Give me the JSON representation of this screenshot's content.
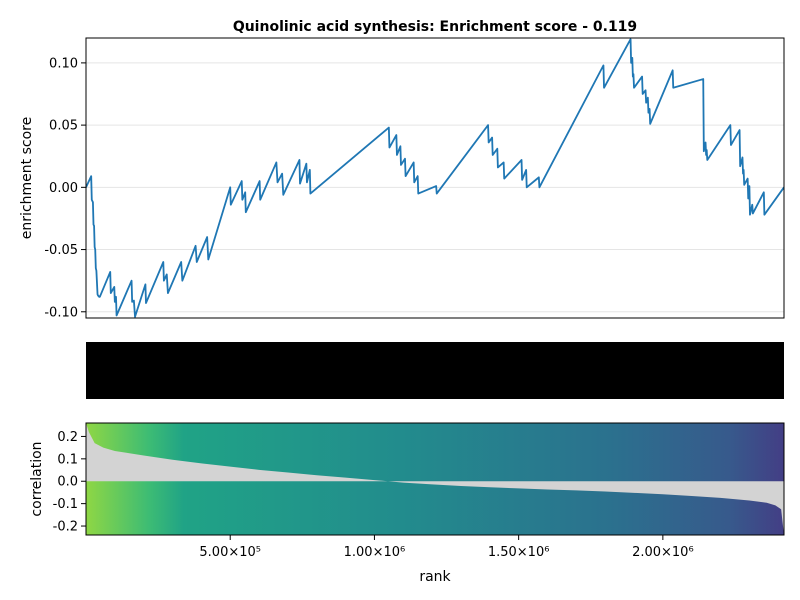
{
  "chart_data": [
    {
      "type": "line",
      "panel": "enrichment",
      "title": "Quinolinic acid synthesis: Enrichment score - 0.119",
      "ylabel": "enrichment score",
      "xlim": [
        0,
        2420000
      ],
      "ylim": [
        -0.105,
        0.12
      ],
      "yticks": [
        -0.1,
        -0.05,
        0.0,
        0.05,
        0.1
      ],
      "ytick_labels": [
        "-0.10",
        "-0.05",
        "0.00",
        "0.05",
        "0.10"
      ],
      "grid": true,
      "color": "#1f77b4",
      "x": [
        0,
        18000,
        20000,
        24000,
        26000,
        28000,
        30000,
        32000,
        34000,
        36000,
        40000,
        42000,
        46000,
        48000,
        84000,
        86000,
        98000,
        100000,
        104000,
        106000,
        158000,
        160000,
        166000,
        170000,
        206000,
        208000,
        268000,
        270000,
        280000,
        284000,
        330000,
        334000,
        380000,
        384000,
        420000,
        424000,
        500000,
        502000,
        540000,
        542000,
        552000,
        554000,
        602000,
        604000,
        660000,
        664000,
        680000,
        684000,
        740000,
        742000,
        764000,
        766000,
        776000,
        778000,
        1050000,
        1052000,
        1076000,
        1078000,
        1090000,
        1092000,
        1106000,
        1108000,
        1136000,
        1138000,
        1150000,
        1152000,
        1214000,
        1216000,
        1394000,
        1396000,
        1408000,
        1410000,
        1426000,
        1428000,
        1448000,
        1450000,
        1510000,
        1512000,
        1526000,
        1528000,
        1570000,
        1572000,
        1794000,
        1796000,
        1888000,
        1890000,
        1894000,
        1896000,
        1898000,
        1900000,
        1928000,
        1930000,
        1940000,
        1942000,
        1948000,
        1950000,
        1954000,
        1956000,
        2034000,
        2036000,
        2140000,
        2142000,
        2148000,
        2150000,
        2152000,
        2154000,
        2234000,
        2236000,
        2266000,
        2268000,
        2276000,
        2278000,
        2280000,
        2282000,
        2294000,
        2296000,
        2300000,
        2302000,
        2310000,
        2312000,
        2350000,
        2352000,
        2420000
      ],
      "y": [
        0.0,
        0.009,
        -0.01,
        -0.012,
        -0.03,
        -0.031,
        -0.048,
        -0.05,
        -0.065,
        -0.067,
        -0.086,
        -0.087,
        -0.088,
        -0.088,
        -0.068,
        -0.085,
        -0.08,
        -0.092,
        -0.088,
        -0.103,
        -0.075,
        -0.092,
        -0.091,
        -0.104,
        -0.078,
        -0.093,
        -0.06,
        -0.075,
        -0.07,
        -0.085,
        -0.06,
        -0.075,
        -0.047,
        -0.06,
        -0.04,
        -0.058,
        0.0,
        -0.014,
        0.005,
        -0.01,
        -0.004,
        -0.02,
        0.005,
        -0.01,
        0.02,
        0.004,
        0.011,
        -0.006,
        0.022,
        0.003,
        0.019,
        0.004,
        0.014,
        -0.005,
        0.048,
        0.032,
        0.042,
        0.026,
        0.033,
        0.018,
        0.023,
        0.009,
        0.02,
        0.004,
        0.009,
        -0.005,
        0.001,
        -0.005,
        0.05,
        0.036,
        0.04,
        0.026,
        0.031,
        0.016,
        0.02,
        0.007,
        0.022,
        0.006,
        0.014,
        0.0,
        0.008,
        0.0,
        0.098,
        0.08,
        0.119,
        0.1,
        0.104,
        0.089,
        0.091,
        0.08,
        0.089,
        0.075,
        0.078,
        0.068,
        0.072,
        0.06,
        0.063,
        0.051,
        0.094,
        0.08,
        0.087,
        0.029,
        0.036,
        0.026,
        0.03,
        0.022,
        0.05,
        0.034,
        0.046,
        0.017,
        0.024,
        0.011,
        0.014,
        0.002,
        0.007,
        -0.009,
        0.001,
        -0.022,
        -0.014,
        -0.021,
        -0.004,
        -0.022,
        0.0
      ]
    },
    {
      "type": "heatmap",
      "panel": "hits",
      "color": "#000000"
    },
    {
      "type": "area",
      "panel": "correlation",
      "xlabel": "rank",
      "ylabel": "correlation",
      "xlim": [
        0,
        2420000
      ],
      "ylim": [
        -0.24,
        0.26
      ],
      "xticks": [
        500000,
        1000000,
        1500000,
        2000000
      ],
      "xtick_labels": [
        "5.00×10⁵",
        "1.00×10⁶",
        "1.50×10⁶",
        "2.00×10⁶"
      ],
      "yticks": [
        0.2,
        0.1,
        0.0,
        -0.1,
        -0.2
      ],
      "ytick_labels": [
        "0.2",
        "0.1",
        "0.0",
        "-0.1",
        "-0.2"
      ],
      "fill_color": "#d3d3d3",
      "x": [
        0,
        10000,
        30000,
        60000,
        100000,
        200000,
        300000,
        400000,
        500000,
        600000,
        700000,
        800000,
        900000,
        1000000,
        1100000,
        1200000,
        1300000,
        1400000,
        1500000,
        1600000,
        1700000,
        1800000,
        1900000,
        2000000,
        2100000,
        2200000,
        2300000,
        2360000,
        2390000,
        2410000,
        2420000
      ],
      "values": [
        0.26,
        0.22,
        0.17,
        0.15,
        0.135,
        0.115,
        0.096,
        0.08,
        0.065,
        0.051,
        0.039,
        0.027,
        0.016,
        0.005,
        -0.006,
        -0.014,
        -0.021,
        -0.027,
        -0.032,
        -0.037,
        -0.041,
        -0.046,
        -0.052,
        -0.058,
        -0.066,
        -0.074,
        -0.086,
        -0.096,
        -0.108,
        -0.125,
        -0.24
      ],
      "gradient_stops": [
        {
          "offset": 0.0,
          "color": "#8fd744"
        },
        {
          "offset": 0.09,
          "color": "#3dbc74"
        },
        {
          "offset": 0.14,
          "color": "#20a386"
        },
        {
          "offset": 0.45,
          "color": "#228c8d"
        },
        {
          "offset": 0.75,
          "color": "#2b718e"
        },
        {
          "offset": 0.92,
          "color": "#375a8c"
        },
        {
          "offset": 1.0,
          "color": "#433e85"
        }
      ]
    }
  ]
}
